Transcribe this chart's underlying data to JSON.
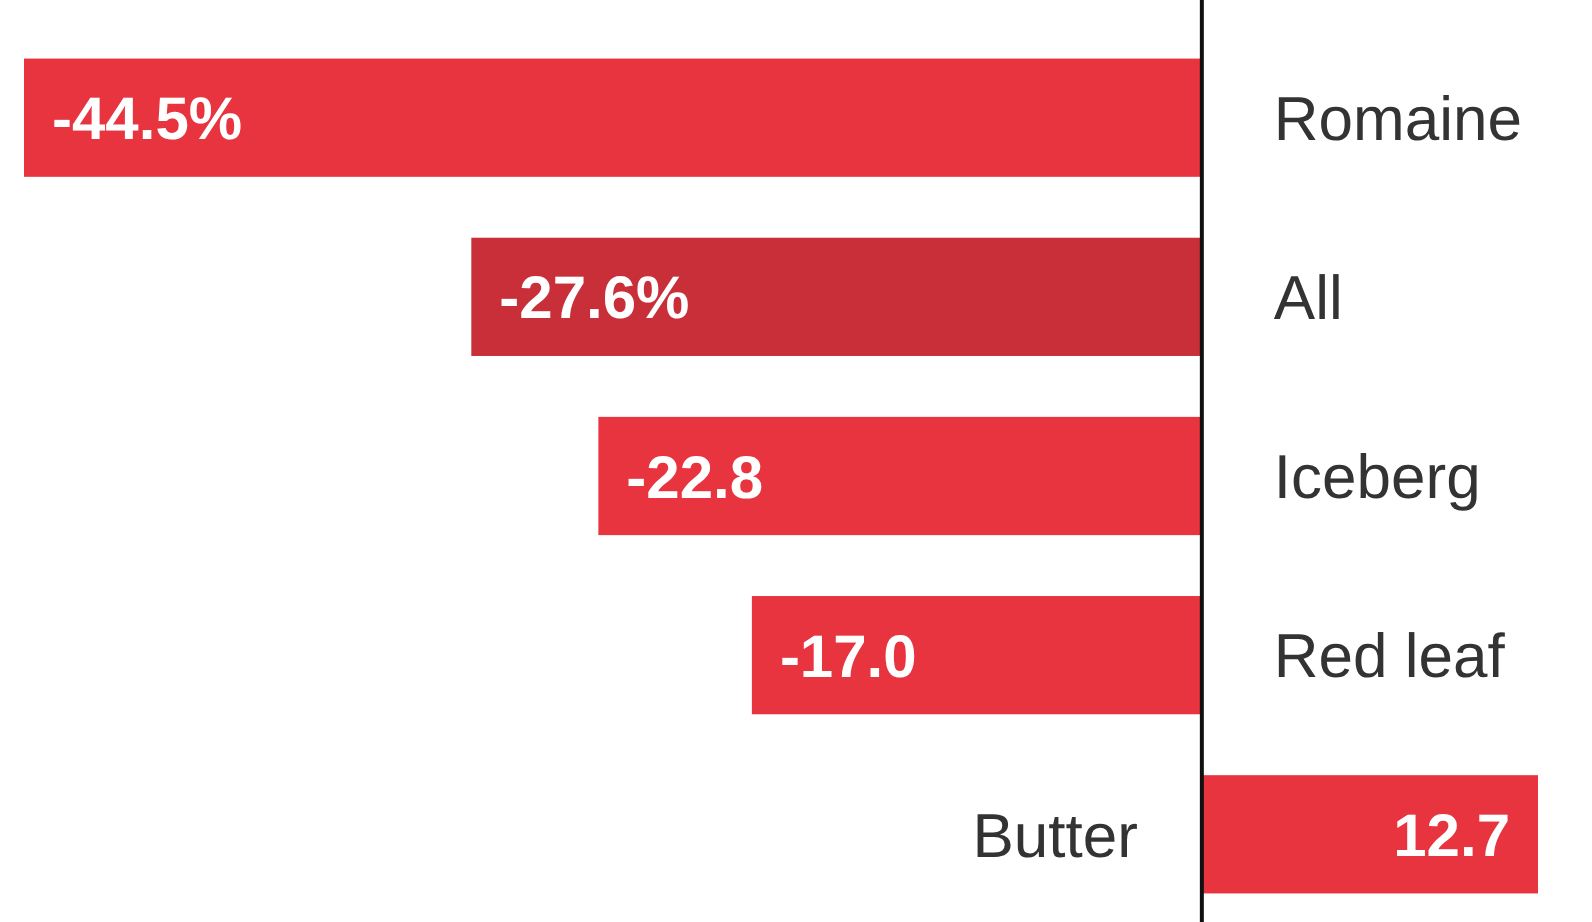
{
  "chart_data": {
    "type": "bar",
    "orientation": "horizontal",
    "categories": [
      "Romaine",
      "All",
      "Iceberg",
      "Red leaf",
      "Butter"
    ],
    "values": [
      -44.5,
      -27.6,
      -22.8,
      -17.0,
      12.7
    ],
    "colors": [
      "#e8343f",
      "#c92f39",
      "#e8343f",
      "#e8343f",
      "#e8343f"
    ],
    "value_labels": [
      "-44.5%",
      "-27.6%",
      "-22.8",
      "-17.0",
      "12.7"
    ]
  }
}
